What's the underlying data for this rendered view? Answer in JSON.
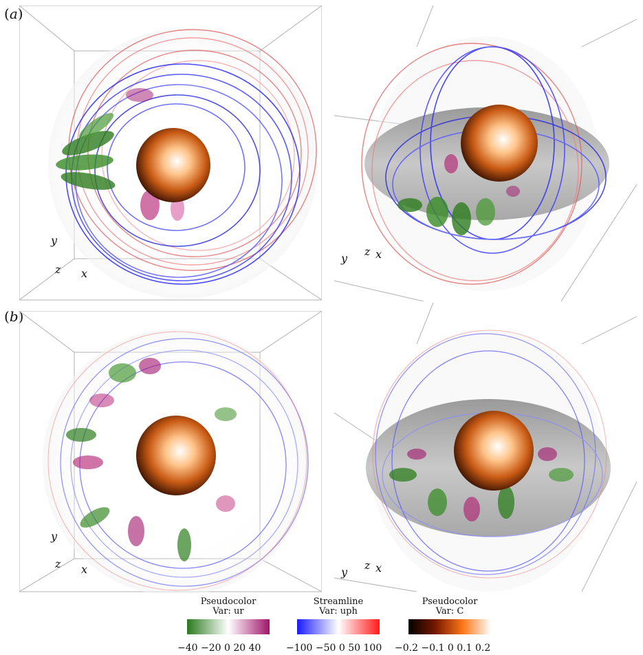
{
  "panels": {
    "a": {
      "label_open": "(",
      "label_letter": "a",
      "label_close": ")"
    },
    "b": {
      "label_open": "(",
      "label_letter": "b",
      "label_close": ")"
    }
  },
  "axes": {
    "y": "y",
    "z": "z",
    "x": "x"
  },
  "legends": [
    {
      "title": "Pseudocolor",
      "var": "Var: ur",
      "ticks": "−40  −20    0  20      40",
      "colors": [
        "#2a7a1e",
        "#ffffff",
        "#a0146a"
      ]
    },
    {
      "title": "Streamline",
      "var": "Var: uph",
      "ticks": "−100  −50    0     50   100",
      "colors": [
        "#1a1aff",
        "#ffffff",
        "#ff1a1a"
      ]
    },
    {
      "title": "Pseudocolor",
      "var": "Var: C",
      "ticks": "−0.2  −0.1   0    0.1   0.2",
      "colors": [
        "#000000",
        "#7a1a00",
        "#ff7a1a",
        "#ffffff"
      ]
    }
  ]
}
